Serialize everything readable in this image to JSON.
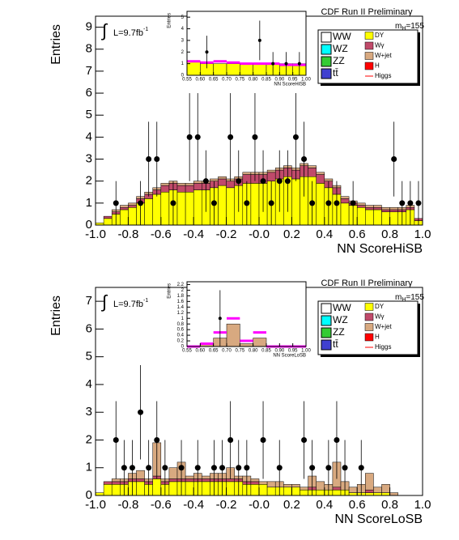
{
  "chart_data": [
    {
      "type": "histogram",
      "title": "CDF Run II Preliminary",
      "mass": {
        "symbol": "m",
        "sub": "H",
        "value": "=155"
      },
      "lumi": {
        "integral": "∫",
        "text": "L=9.7fb",
        "sup": "-1"
      },
      "x_label": "NN ScoreHiSB",
      "y_label": "Entries",
      "bins": [
        -1.0,
        -0.95,
        -0.9,
        -0.85,
        -0.8,
        -0.75,
        -0.7,
        -0.65,
        -0.6,
        -0.55,
        -0.5,
        -0.45,
        -0.4,
        -0.35,
        -0.3,
        -0.25,
        -0.2,
        -0.15,
        -0.1,
        -0.05,
        0.0,
        0.05,
        0.1,
        0.15,
        0.2,
        0.25,
        0.3,
        0.35,
        0.4,
        0.45,
        0.5,
        0.55,
        0.6,
        0.65,
        0.7,
        0.75,
        0.8,
        0.85,
        0.9,
        0.95,
        1.0
      ],
      "xlim": [
        -1.0,
        1.0
      ],
      "xticks": [
        {
          "value": -1.0,
          "label": "-1.0"
        },
        -0.8,
        -0.6,
        -0.4,
        -0.2,
        {
          "value": 0,
          "label": "-0.0"
        },
        0.2,
        0.4,
        0.6,
        0.8,
        {
          "value": 1.0,
          "label": "1.0"
        }
      ],
      "ylim": [
        0,
        9.5
      ],
      "yticks": [
        0,
        1,
        2,
        3,
        4,
        5,
        6,
        7,
        8,
        9
      ],
      "series": [
        {
          "name": "DY",
          "color": "#ffff00",
          "values": [
            0.1,
            0.3,
            0.5,
            0.7,
            0.8,
            1.0,
            1.2,
            1.4,
            1.5,
            1.6,
            1.5,
            1.5,
            1.6,
            1.6,
            1.7,
            1.8,
            1.7,
            1.8,
            1.9,
            1.9,
            1.9,
            2.0,
            2.1,
            2.2,
            2.1,
            2.2,
            2.2,
            1.9,
            1.7,
            1.4,
            1.0,
            0.9,
            0.8,
            0.7,
            0.7,
            0.6,
            0.6,
            0.6,
            0.7,
            0.2
          ]
        },
        {
          "name": "Wγ",
          "color": "#c04a6a",
          "values": [
            0,
            0.1,
            0.1,
            0.1,
            0.1,
            0.2,
            0.2,
            0.2,
            0.3,
            0.3,
            0.3,
            0.3,
            0.3,
            0.3,
            0.3,
            0.3,
            0.3,
            0.3,
            0.4,
            0.4,
            0.4,
            0.4,
            0.4,
            0.4,
            0.4,
            0.5,
            0.4,
            0.4,
            0.3,
            0.3,
            0.2,
            0.1,
            0.1,
            0.1,
            0.1,
            0.1,
            0.1,
            0.1,
            0.1,
            0.1
          ]
        },
        {
          "name": "W+jet",
          "color": "#d8a980",
          "values": [
            0,
            0,
            0.1,
            0.1,
            0.1,
            0.1,
            0.1,
            0.1,
            0.1,
            0.1,
            0.1,
            0.1,
            0.1,
            0.1,
            0.1,
            0.1,
            0.1,
            0.1,
            0.1,
            0.1,
            0.1,
            0.1,
            0.1,
            0.1,
            0.1,
            0.1,
            0.1,
            0.1,
            0.1,
            0.1,
            0.1,
            0.1,
            0.1,
            0.1,
            0.1,
            0.1,
            0.1,
            0.1,
            0.1,
            0
          ]
        }
      ],
      "data_points": {
        "x": [
          -0.875,
          -0.725,
          -0.675,
          -0.625,
          -0.525,
          -0.425,
          -0.375,
          -0.325,
          -0.275,
          -0.175,
          -0.125,
          -0.075,
          -0.025,
          0.025,
          0.075,
          0.125,
          0.175,
          0.225,
          0.275,
          0.325,
          0.425,
          0.475,
          0.575,
          0.825,
          0.875,
          0.925,
          0.975
        ],
        "values": [
          1,
          1,
          3,
          3,
          1,
          4,
          4,
          2,
          1,
          4,
          2,
          1,
          4,
          2,
          1,
          2,
          2,
          4,
          3,
          1,
          1,
          1,
          1,
          3,
          1,
          1,
          1
        ],
        "errors": [
          1,
          1,
          1.7,
          1.7,
          1,
          2,
          2,
          1.4,
          1,
          2,
          1.4,
          1,
          2,
          1.4,
          1,
          1.4,
          1.4,
          2,
          1.7,
          1,
          1,
          1,
          1,
          1.7,
          1,
          1,
          1
        ]
      },
      "legend_left": [
        {
          "name": "WW",
          "color": "#ffffff"
        },
        {
          "name": "WZ",
          "color": "#00ffff"
        },
        {
          "name": "ZZ",
          "color": "#33cc33"
        },
        {
          "name": "tt̄",
          "color": "#4040d0"
        }
      ],
      "legend_right_extra": [
        {
          "name": "H",
          "color": "#ff0000"
        },
        {
          "name": "Higgs",
          "color": "#ff0000",
          "style": "line"
        }
      ],
      "inset": {
        "x_label": "NN ScoreHiSB",
        "y_label": "Entries",
        "bins": [
          0.55,
          0.6,
          0.65,
          0.7,
          0.75,
          0.8,
          0.85,
          0.9,
          0.95,
          1.0
        ],
        "xlim": [
          0.55,
          1.0
        ],
        "xticks": [
          0.55,
          {
            "value": 0.6,
            "label": "0.60"
          },
          0.65,
          {
            "value": 0.7,
            "label": "0.70"
          },
          0.75,
          {
            "value": 0.8,
            "label": "0.80"
          },
          0.85,
          {
            "value": 0.9,
            "label": "0.90"
          },
          0.95,
          {
            "value": 1.0,
            "label": "1.00"
          }
        ],
        "ylim": [
          0,
          5.5
        ],
        "yticks": [
          0,
          1,
          2,
          3,
          4,
          5
        ],
        "series": [
          {
            "color": "#ffff00",
            "values": [
              1.2,
              1.0,
              1.0,
              1.0,
              1.0,
              1.0,
              1.0,
              1.0,
              1.0
            ]
          },
          {
            "color": "#ff00ff",
            "style": "line",
            "values": [
              1.2,
              1.1,
              1.2,
              1.1,
              1.0,
              1.0,
              1.0,
              0.9,
              0.9
            ]
          }
        ],
        "data_points": {
          "x": [
            0.625,
            0.825,
            0.875,
            0.925,
            0.975
          ],
          "values": [
            2,
            3,
            1,
            1,
            1
          ],
          "errors": [
            1.4,
            1.7,
            1,
            1,
            1
          ]
        }
      }
    },
    {
      "type": "histogram",
      "title": "CDF Run II Preliminary",
      "mass": {
        "symbol": "m",
        "sub": "H",
        "value": "=155"
      },
      "lumi": {
        "integral": "∫",
        "text": "L=9.7fb",
        "sup": "-1"
      },
      "x_label": "NN ScoreLoSB",
      "y_label": "Entries",
      "bins": [
        -1.0,
        -0.95,
        -0.9,
        -0.85,
        -0.8,
        -0.75,
        -0.7,
        -0.65,
        -0.6,
        -0.55,
        -0.5,
        -0.45,
        -0.4,
        -0.35,
        -0.3,
        -0.25,
        -0.2,
        -0.15,
        -0.1,
        -0.05,
        0.0,
        0.05,
        0.1,
        0.15,
        0.2,
        0.25,
        0.3,
        0.35,
        0.4,
        0.45,
        0.5,
        0.55,
        0.6,
        0.65,
        0.7,
        0.75,
        0.8,
        0.85,
        0.9,
        0.95,
        1.0
      ],
      "xlim": [
        -1.0,
        1.0
      ],
      "xticks": [
        {
          "value": -1.0,
          "label": "-1.0"
        },
        -0.8,
        -0.6,
        -0.4,
        -0.2,
        {
          "value": 0,
          "label": "-0.0"
        },
        0.2,
        0.4,
        0.6,
        0.8,
        {
          "value": 1.0,
          "label": "1.0"
        }
      ],
      "ylim": [
        0,
        7.5
      ],
      "yticks": [
        0,
        1,
        2,
        3,
        4,
        5,
        6,
        7
      ],
      "series": [
        {
          "name": "DY",
          "color": "#ffff00",
          "values": [
            0.1,
            0.4,
            0.4,
            0.4,
            0.5,
            0.5,
            0.4,
            0.6,
            0.4,
            0.5,
            0.5,
            0.5,
            0.5,
            0.5,
            0.5,
            0.5,
            0.5,
            0.5,
            0.4,
            0.4,
            0.4,
            0.3,
            0.3,
            0.3,
            0.3,
            0.2,
            0.2,
            0.2,
            0.2,
            0.2,
            0.2,
            0.1,
            0.1,
            0.1,
            0.1,
            0.1,
            0,
            0,
            0,
            0
          ]
        },
        {
          "name": "Wγ",
          "color": "#c04a6a",
          "values": [
            0,
            0.1,
            0.1,
            0.1,
            0.1,
            0.1,
            0.1,
            0.1,
            0.1,
            0.1,
            0.1,
            0.1,
            0.1,
            0.1,
            0.1,
            0.1,
            0.1,
            0.1,
            0.1,
            0.1,
            0,
            0,
            0,
            0,
            0,
            0,
            0.1,
            0,
            0,
            0.1,
            0,
            0,
            0,
            0.1,
            0,
            0,
            0,
            0,
            0,
            0
          ]
        },
        {
          "name": "W+jet",
          "color": "#d8a980",
          "values": [
            0,
            0,
            0.1,
            0.1,
            0.2,
            0.3,
            0.1,
            1.2,
            0.1,
            0.4,
            0.6,
            0.1,
            0.2,
            0.1,
            0.2,
            0.2,
            0.4,
            0.1,
            0.2,
            0.1,
            0.1,
            0.2,
            0.2,
            0.1,
            0.1,
            0.1,
            0.4,
            0.3,
            0.2,
            0.9,
            0.3,
            0.2,
            0.3,
            0.6,
            0.2,
            0.3,
            0.1,
            0,
            0,
            0
          ]
        }
      ],
      "data_points": {
        "x": [
          -0.875,
          -0.825,
          -0.775,
          -0.725,
          -0.675,
          -0.625,
          -0.575,
          -0.475,
          -0.375,
          -0.275,
          -0.225,
          -0.175,
          -0.125,
          -0.075,
          0.025,
          0.125,
          0.275,
          0.325,
          0.425,
          0.475,
          0.525,
          0.625
        ],
        "values": [
          2,
          1,
          1,
          3,
          1,
          2,
          1,
          1,
          1,
          1,
          1,
          2,
          1,
          1,
          2,
          1,
          2,
          1,
          1,
          2,
          1,
          1
        ],
        "errors": [
          1.4,
          1,
          1,
          1.7,
          1,
          1.4,
          1,
          1,
          1,
          1,
          1,
          1.4,
          1,
          1,
          1.4,
          1,
          1.4,
          1,
          1,
          1.4,
          1,
          1
        ]
      },
      "legend_left": [
        {
          "name": "WW",
          "color": "#ffffff"
        },
        {
          "name": "WZ",
          "color": "#00ffff"
        },
        {
          "name": "ZZ",
          "color": "#33cc33"
        },
        {
          "name": "tt̄",
          "color": "#4040d0"
        }
      ],
      "legend_right_extra": [
        {
          "name": "H",
          "color": "#ff0000"
        },
        {
          "name": "Higgs",
          "color": "#ff0000",
          "style": "line"
        }
      ],
      "inset": {
        "x_label": "NN ScoreLoSB",
        "y_label": "Entries",
        "bins": [
          0.55,
          0.6,
          0.65,
          0.7,
          0.75,
          0.8,
          0.85,
          0.9,
          0.95,
          1.0
        ],
        "xlim": [
          0.55,
          1.0
        ],
        "xticks": [
          0.55,
          {
            "value": 0.6,
            "label": "0.60"
          },
          0.65,
          {
            "value": 0.7,
            "label": "0.70"
          },
          0.75,
          {
            "value": 0.8,
            "label": "0.80"
          },
          0.85,
          {
            "value": 0.9,
            "label": "0.90"
          },
          0.95,
          {
            "value": 1.0,
            "label": "1.00"
          }
        ],
        "ylim": [
          0,
          2.3
        ],
        "yticks": [
          0,
          0.2,
          0.4,
          0.6,
          0.8,
          1,
          1.2,
          1.4,
          1.6,
          1.8,
          2,
          2.2
        ],
        "series": [
          {
            "color": "#d8a980",
            "values": [
              0,
              0.1,
              0.3,
              0.8,
              0.1,
              0.3,
              0,
              0,
              0
            ]
          },
          {
            "color": "#ff00ff",
            "style": "line",
            "values": [
              0,
              0.1,
              0.5,
              1.0,
              0.2,
              0.5,
              0,
              0,
              0
            ]
          }
        ],
        "data_points": {
          "x": [
            0.675
          ],
          "values": [
            1
          ],
          "errors": [
            1
          ]
        }
      }
    }
  ]
}
